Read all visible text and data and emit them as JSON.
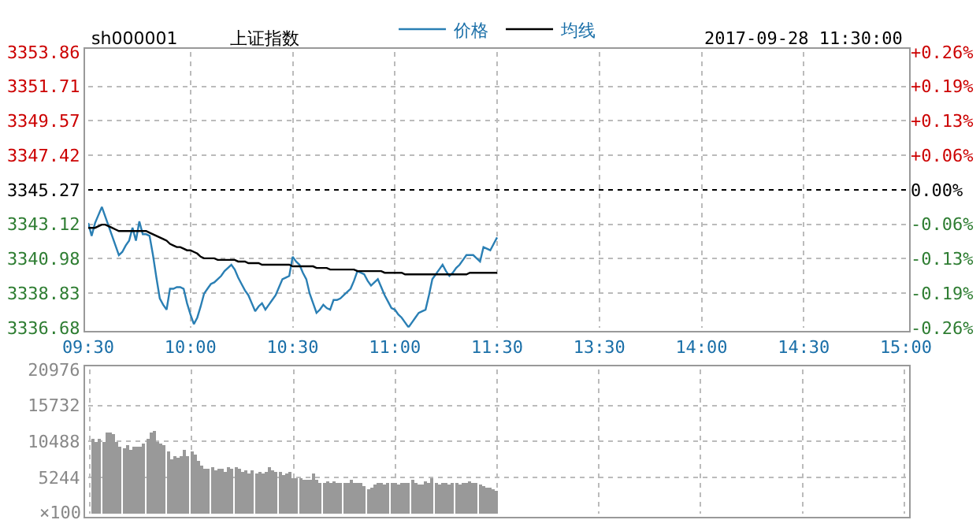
{
  "chart_data": [
    {
      "type": "line",
      "title": "上证指数",
      "subtitle": "sh000001",
      "annotations": [
        "2017-09-28 11:30:00"
      ],
      "legend": "top",
      "grid": true,
      "marker": "none",
      "line_style": "solid",
      "categories": [
        "09:30",
        null,
        null,
        null,
        null,
        null,
        null,
        null,
        null,
        null,
        null,
        null,
        null,
        null,
        null,
        null,
        null,
        null,
        null,
        null,
        null,
        null,
        null,
        null,
        null,
        null,
        null,
        null,
        null,
        null,
        "10:00",
        null,
        null,
        null,
        null,
        null,
        null,
        null,
        null,
        null,
        null,
        null,
        null,
        null,
        null,
        null,
        null,
        null,
        null,
        null,
        null,
        null,
        null,
        null,
        null,
        null,
        null,
        null,
        null,
        null,
        "10:30",
        null,
        null,
        null,
        null,
        null,
        null,
        null,
        null,
        null,
        null,
        null,
        null,
        null,
        null,
        null,
        null,
        null,
        null,
        null,
        null,
        null,
        null,
        null,
        null,
        null,
        null,
        null,
        null,
        null,
        "11:00",
        null,
        null,
        null,
        null,
        null,
        null,
        null,
        null,
        null,
        null,
        null,
        null,
        null,
        null,
        null,
        null,
        null,
        null,
        null,
        null,
        null,
        null,
        null,
        null,
        null,
        null,
        null,
        null,
        null,
        "11:30",
        null,
        null,
        null,
        null,
        null,
        null,
        null,
        null,
        null,
        null,
        null,
        null,
        null,
        null,
        null,
        null,
        null,
        null,
        null,
        null,
        null,
        null,
        null,
        null,
        null,
        null,
        null,
        null,
        null,
        "13:30",
        null,
        null,
        null,
        null,
        null,
        null,
        null,
        null,
        null,
        null,
        null,
        null,
        null,
        null,
        null,
        null,
        null,
        null,
        null,
        null,
        null,
        null,
        null,
        null,
        null,
        null,
        null,
        null,
        null,
        "14:00",
        null,
        null,
        null,
        null,
        null,
        null,
        null,
        null,
        null,
        null,
        null,
        null,
        null,
        null,
        null,
        null,
        null,
        null,
        null,
        null,
        null,
        null,
        null,
        null,
        null,
        null,
        null,
        null,
        null,
        "14:30",
        null,
        null,
        null,
        null,
        null,
        null,
        null,
        null,
        null,
        null,
        null,
        null,
        null,
        null,
        null,
        null,
        null,
        null,
        null,
        null,
        null,
        null,
        null,
        null,
        null,
        null,
        null,
        null,
        null,
        "15:00"
      ],
      "ylim": [
        3336.68,
        3353.86
      ],
      "yticks": [
        3336.68,
        3338.83,
        3340.98,
        3343.12,
        3345.27,
        3347.42,
        3349.57,
        3351.71,
        3353.86
      ],
      "y2lim": [
        -0.2568,
        0.2568
      ],
      "y2ticks": [
        {
          "value": -0.2568,
          "label": "-0.26%"
        },
        {
          "value": -0.1926,
          "label": "-0.19%"
        },
        {
          "value": -0.1284,
          "label": "-0.13%"
        },
        {
          "value": -0.0642,
          "label": "-0.06%"
        },
        {
          "value": 0,
          "label": "0.00%"
        },
        {
          "value": 0.0642,
          "label": "+0.06%"
        },
        {
          "value": 0.1284,
          "label": "+0.13%"
        },
        {
          "value": 0.1926,
          "label": "+0.19%"
        },
        {
          "value": 0.2568,
          "label": "+0.26%"
        }
      ],
      "ref_lines": [
        {
          "axis": "y",
          "value": 3345.27,
          "color": "#000000",
          "line_style": "dotted"
        }
      ],
      "series": [
        {
          "name": "价格",
          "color": "#2a7fb4",
          "values": [
            3343.2,
            3342.4,
            3343.2,
            3343.7,
            3344.2,
            3343.6,
            3343.0,
            3342.4,
            3341.8,
            3341.2,
            3341.4,
            3341.8,
            3342.1,
            3342.9,
            3342.1,
            3343.3,
            3342.5,
            3342.5,
            3342.4,
            3341.2,
            3339.8,
            3338.5,
            3338.1,
            3337.8,
            3339.1,
            3339.1,
            3339.2,
            3339.2,
            3339.1,
            3338.2,
            3337.5,
            3336.9,
            3337.3,
            3338.0,
            3338.8,
            3339.1,
            3339.4,
            3339.5,
            3339.7,
            3339.9,
            3340.2,
            3340.4,
            3340.6,
            3340.3,
            3339.8,
            3339.4,
            3339.0,
            3338.7,
            3338.2,
            3337.7,
            3338.0,
            3338.2,
            3337.8,
            3338.1,
            3338.4,
            3338.7,
            3339.2,
            3339.7,
            3339.8,
            3339.9,
            3341.1,
            3340.8,
            3340.6,
            3340.1,
            3339.7,
            3338.8,
            3338.2,
            3337.6,
            3337.8,
            3338.1,
            3337.9,
            3337.8,
            3338.4,
            3338.4,
            3338.5,
            3338.7,
            3338.9,
            3339.1,
            3339.6,
            3340.2,
            3340.1,
            3340.0,
            3339.6,
            3339.3,
            3339.5,
            3339.7,
            3339.2,
            3338.7,
            3338.3,
            3337.9,
            3337.8,
            3337.5,
            3337.3,
            3337.0,
            3336.7,
            3337.0,
            3337.3,
            3337.6,
            3337.7,
            3337.8,
            3338.7,
            3339.7,
            3340.0,
            3340.3,
            3340.6,
            3340.2,
            3339.9,
            3340.1,
            3340.4,
            3340.6,
            3340.9,
            3341.2,
            3341.2,
            3341.2,
            3341.0,
            3340.8,
            3341.7,
            3341.6,
            3341.5,
            3341.9,
            3342.3,
            null,
            null,
            null,
            null,
            null,
            null,
            null,
            null,
            null,
            null,
            null,
            null,
            null,
            null,
            null,
            null,
            null,
            null,
            null,
            null,
            null,
            null,
            null,
            null,
            null,
            null,
            null,
            null,
            null,
            null,
            null,
            null,
            null,
            null,
            null,
            null,
            null,
            null,
            null,
            null,
            null,
            null,
            null,
            null,
            null,
            null,
            null,
            null,
            null,
            null,
            null,
            null,
            null,
            null,
            null,
            null,
            null,
            null,
            null,
            null,
            null,
            null,
            null,
            null,
            null,
            null,
            null,
            null,
            null,
            null,
            null,
            null,
            null,
            null,
            null,
            null,
            null,
            null,
            null,
            null,
            null,
            null,
            null,
            null,
            null,
            null,
            null,
            null,
            null,
            null,
            null,
            null,
            null,
            null,
            null,
            null,
            null,
            null,
            null,
            null,
            null,
            null,
            null,
            null,
            null,
            null,
            null,
            null,
            null,
            null,
            null,
            null,
            null,
            null,
            null,
            null,
            null,
            null,
            null,
            null
          ]
        },
        {
          "name": "均线",
          "color": "#000000",
          "values": [
            3342.9,
            3342.9,
            3342.9,
            3343.0,
            3343.1,
            3343.1,
            3343.0,
            3342.9,
            3342.8,
            3342.7,
            3342.7,
            3342.7,
            3342.7,
            3342.7,
            3342.7,
            3342.7,
            3342.7,
            3342.7,
            3342.6,
            3342.5,
            3342.4,
            3342.3,
            3342.2,
            3342.1,
            3341.9,
            3341.8,
            3341.7,
            3341.7,
            3341.6,
            3341.5,
            3341.5,
            3341.4,
            3341.3,
            3341.1,
            3341.0,
            3341.0,
            3341.0,
            3341.0,
            3340.9,
            3340.9,
            3340.9,
            3340.9,
            3340.9,
            3340.9,
            3340.8,
            3340.8,
            3340.8,
            3340.7,
            3340.7,
            3340.7,
            3340.7,
            3340.6,
            3340.6,
            3340.6,
            3340.6,
            3340.6,
            3340.6,
            3340.6,
            3340.6,
            3340.6,
            3340.5,
            3340.5,
            3340.5,
            3340.5,
            3340.5,
            3340.5,
            3340.5,
            3340.4,
            3340.4,
            3340.4,
            3340.4,
            3340.3,
            3340.3,
            3340.3,
            3340.3,
            3340.3,
            3340.3,
            3340.3,
            3340.3,
            3340.2,
            3340.2,
            3340.2,
            3340.2,
            3340.2,
            3340.2,
            3340.2,
            3340.2,
            3340.1,
            3340.1,
            3340.1,
            3340.1,
            3340.1,
            3340.1,
            3340.0,
            3340.0,
            3340.0,
            3340.0,
            3340.0,
            3340.0,
            3340.0,
            3340.0,
            3340.0,
            3340.0,
            3340.0,
            3340.0,
            3340.0,
            3340.0,
            3340.0,
            3340.0,
            3340.0,
            3340.0,
            3340.0,
            3340.1,
            3340.1,
            3340.1,
            3340.1,
            3340.1,
            3340.1,
            3340.1,
            3340.1,
            3340.1,
            null,
            null,
            null,
            null,
            null,
            null,
            null,
            null,
            null,
            null,
            null,
            null,
            null,
            null,
            null,
            null,
            null,
            null,
            null,
            null,
            null,
            null,
            null,
            null,
            null,
            null,
            null,
            null,
            null,
            null,
            null,
            null,
            null,
            null,
            null,
            null,
            null,
            null,
            null,
            null,
            null,
            null,
            null,
            null,
            null,
            null,
            null,
            null,
            null,
            null,
            null,
            null,
            null,
            null,
            null,
            null,
            null,
            null,
            null,
            null,
            null,
            null,
            null,
            null,
            null,
            null,
            null,
            null,
            null,
            null,
            null,
            null,
            null,
            null,
            null,
            null,
            null,
            null,
            null,
            null,
            null,
            null,
            null,
            null,
            null,
            null,
            null,
            null,
            null,
            null,
            null,
            null,
            null,
            null,
            null,
            null,
            null,
            null,
            null,
            null,
            null,
            null,
            null,
            null,
            null,
            null,
            null,
            null,
            null,
            null,
            null,
            null,
            null,
            null,
            null,
            null,
            null,
            null,
            null,
            null
          ]
        }
      ]
    },
    {
      "type": "bar",
      "grid": true,
      "tick_labels": "y",
      "color": "#999999",
      "ylabel": "×100",
      "categories": [
        null,
        null,
        null,
        null,
        null,
        null,
        null,
        null,
        null,
        null,
        null,
        null,
        null,
        null,
        null,
        null,
        null,
        null,
        null,
        null,
        null,
        null,
        null,
        null,
        null,
        null,
        null,
        null,
        null,
        null,
        null,
        null,
        null,
        null,
        null,
        null,
        null,
        null,
        null,
        null,
        null,
        null,
        null,
        null,
        null,
        null,
        null,
        null,
        null,
        null,
        null,
        null,
        null,
        null,
        null,
        null,
        null,
        null,
        null,
        null,
        null,
        null,
        null,
        null,
        null,
        null,
        null,
        null,
        null,
        null,
        null,
        null,
        null,
        null,
        null,
        null,
        null,
        null,
        null,
        null,
        null,
        null,
        null,
        null,
        null,
        null,
        null,
        null,
        null,
        null,
        null,
        null,
        null,
        null,
        null,
        null,
        null,
        null,
        null,
        null,
        null,
        null,
        null,
        null,
        null,
        null,
        null,
        null,
        null,
        null,
        null,
        null,
        null,
        null,
        null,
        null,
        null,
        null,
        null,
        null,
        null,
        null,
        null,
        null,
        null,
        null,
        null,
        null,
        null,
        null,
        null,
        null,
        null,
        null,
        null,
        null,
        null,
        null,
        null,
        null,
        null,
        null,
        null,
        null,
        null,
        null,
        null,
        null,
        null,
        null,
        null,
        null,
        null,
        null,
        null,
        null,
        null,
        null,
        null,
        null,
        null,
        null,
        null,
        null,
        null,
        null,
        null,
        null,
        null,
        null,
        null,
        null,
        null,
        null,
        null,
        null,
        null,
        null,
        null,
        null,
        null,
        null,
        null,
        null,
        null,
        null,
        null,
        null,
        null,
        null,
        null,
        null,
        null,
        null,
        null,
        null,
        null,
        null,
        null,
        null,
        null,
        null,
        null,
        null,
        null,
        null,
        null,
        null,
        null,
        null,
        null,
        null,
        null,
        null,
        null,
        null,
        null,
        null,
        null,
        null,
        null,
        null,
        null,
        null,
        null,
        null,
        null,
        null,
        null,
        null,
        null,
        null,
        null,
        null,
        null,
        null,
        null,
        null,
        null,
        null,
        null
      ],
      "ylim": [
        0,
        20976
      ],
      "yticks": [
        5244,
        10488,
        15732,
        20976
      ],
      "values": [
        null,
        10800,
        10500,
        10800,
        10500,
        11700,
        11900,
        11500,
        10500,
        9800,
        9600,
        10000,
        9400,
        9800,
        9800,
        9800,
        10100,
        10800,
        11900,
        12000,
        10500,
        10100,
        10000,
        9100,
        8000,
        8400,
        8200,
        8400,
        9400,
        8400,
        9100,
        8700,
        7700,
        7000,
        6500,
        6600,
        6800,
        6300,
        6500,
        6600,
        6100,
        6800,
        6600,
        6800,
        6500,
        6100,
        6300,
        5900,
        6300,
        5900,
        6100,
        5800,
        6100,
        6800,
        6300,
        6100,
        6100,
        5600,
        5800,
        6100,
        5200,
        5100,
        5100,
        4900,
        4900,
        4900,
        5800,
        4900,
        4500,
        4500,
        4700,
        4500,
        4700,
        4400,
        4500,
        4500,
        4400,
        4900,
        4400,
        4500,
        4500,
        4000,
        3500,
        3800,
        4200,
        4400,
        4400,
        4200,
        4500,
        4400,
        4500,
        4200,
        4400,
        4500,
        4400,
        4900,
        4400,
        4200,
        4200,
        4700,
        4500,
        5100,
        4500,
        4200,
        4400,
        4400,
        4200,
        4500,
        4400,
        4200,
        4400,
        4500,
        4700,
        4400,
        4500,
        4200,
        4000,
        3800,
        3800,
        3500,
        3300,
        null,
        null,
        null,
        null,
        null,
        null,
        null,
        null,
        null,
        null,
        null,
        null,
        null,
        null,
        null,
        null,
        null,
        null,
        null,
        null,
        null,
        null,
        null,
        null,
        null,
        null,
        null,
        null,
        null,
        null,
        null,
        null,
        null,
        null,
        null,
        null,
        null,
        null,
        null,
        null,
        null,
        null,
        null,
        null,
        null,
        null,
        null,
        null,
        null,
        null,
        null,
        null,
        null,
        null,
        null,
        null,
        null,
        null,
        null,
        null,
        null,
        null,
        null,
        null,
        null,
        null,
        null,
        null,
        null,
        null,
        null,
        null,
        null,
        null,
        null,
        null,
        null,
        null,
        null,
        null,
        null,
        null,
        null,
        null,
        null,
        null,
        null,
        null,
        null,
        null,
        null,
        null,
        null,
        null,
        null,
        null,
        null,
        null,
        null,
        null,
        null,
        null,
        null,
        null,
        null,
        null,
        null,
        null,
        null,
        null,
        null,
        null,
        null,
        null,
        null,
        null,
        null,
        null,
        null,
        null
      ]
    }
  ]
}
